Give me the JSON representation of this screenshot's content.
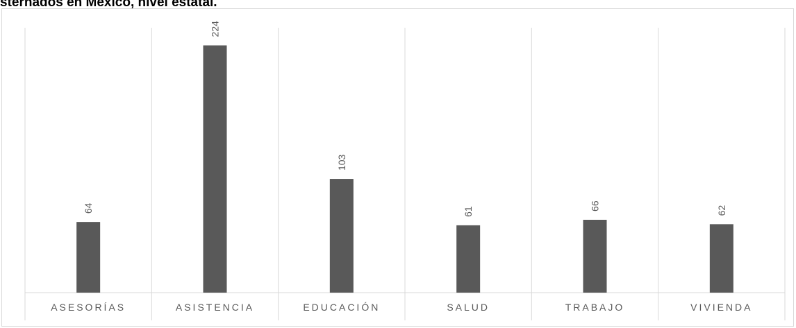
{
  "chart_data": {
    "type": "bar",
    "title": "sternados en México, nivel estatal.",
    "categories": [
      "ASESORÍAS",
      "ASISTENCIA",
      "EDUCACIÓN",
      "SALUD",
      "TRABAJO",
      "VIVIENDA"
    ],
    "values": [
      64,
      224,
      103,
      61,
      66,
      62
    ],
    "data_labels": [
      "64",
      "224",
      "103",
      "61",
      "66",
      "62"
    ],
    "xlabel": "",
    "ylabel": "",
    "ylim": [
      0,
      240
    ],
    "grid": "vertical category separators",
    "legend": "none",
    "colors": {
      "bar": "#595959",
      "gridline": "#d9d9d9",
      "label": "#595959"
    }
  }
}
